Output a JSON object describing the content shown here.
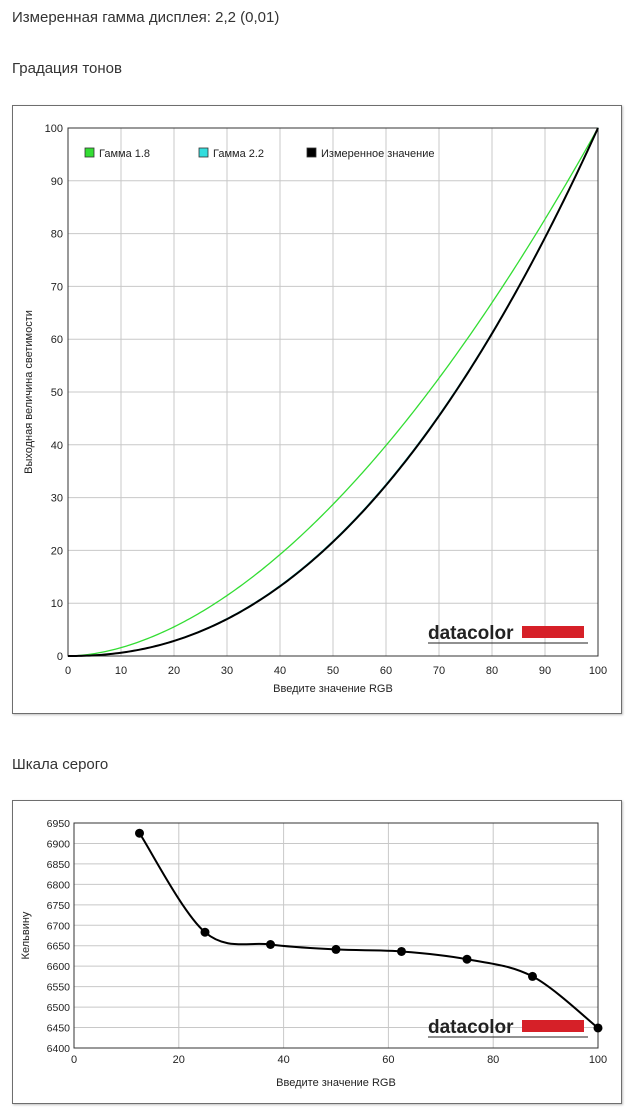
{
  "header": {
    "measured_gamma": "Измеренная гамма дисплея: 2,2 (0,01)",
    "section_tone": "Градация тонов",
    "section_gray": "Шкала серого"
  },
  "logo": {
    "text": "datacolor",
    "bar_color": "#d62028"
  },
  "chart_data": [
    {
      "type": "line",
      "xlabel": "Введите значение RGB",
      "ylabel": "Выходная величина светимости",
      "xlim": [
        0,
        100
      ],
      "ylim": [
        0,
        100
      ],
      "xticks": [
        0,
        10,
        20,
        30,
        40,
        50,
        60,
        70,
        80,
        90,
        100
      ],
      "yticks": [
        0,
        10,
        20,
        30,
        40,
        50,
        60,
        70,
        80,
        90,
        100
      ],
      "grid": true,
      "legend_position": "top-left",
      "series": [
        {
          "name": "Гамма 1.8",
          "color": "#33dd33",
          "gamma": 1.8
        },
        {
          "name": "Гамма 2.2",
          "color": "#33dddd",
          "gamma": 2.2
        },
        {
          "name": "Измеренное значение",
          "color": "#000000",
          "gamma": 2.21
        }
      ]
    },
    {
      "type": "line",
      "xlabel": "Введите значение RGB",
      "ylabel": "Кельвину",
      "xlim": [
        0,
        100
      ],
      "ylim": [
        6400,
        6950
      ],
      "xticks": [
        0,
        20,
        40,
        60,
        80,
        100
      ],
      "yticks": [
        6400,
        6450,
        6500,
        6550,
        6600,
        6650,
        6700,
        6750,
        6800,
        6850,
        6900,
        6950
      ],
      "grid": true,
      "series": [
        {
          "color": "#000000",
          "x": [
            12.5,
            25,
            37.5,
            50,
            62.5,
            75,
            87.5,
            100
          ],
          "y": [
            6925,
            6683,
            6653,
            6641,
            6636,
            6617,
            6575,
            6449
          ]
        }
      ]
    }
  ]
}
